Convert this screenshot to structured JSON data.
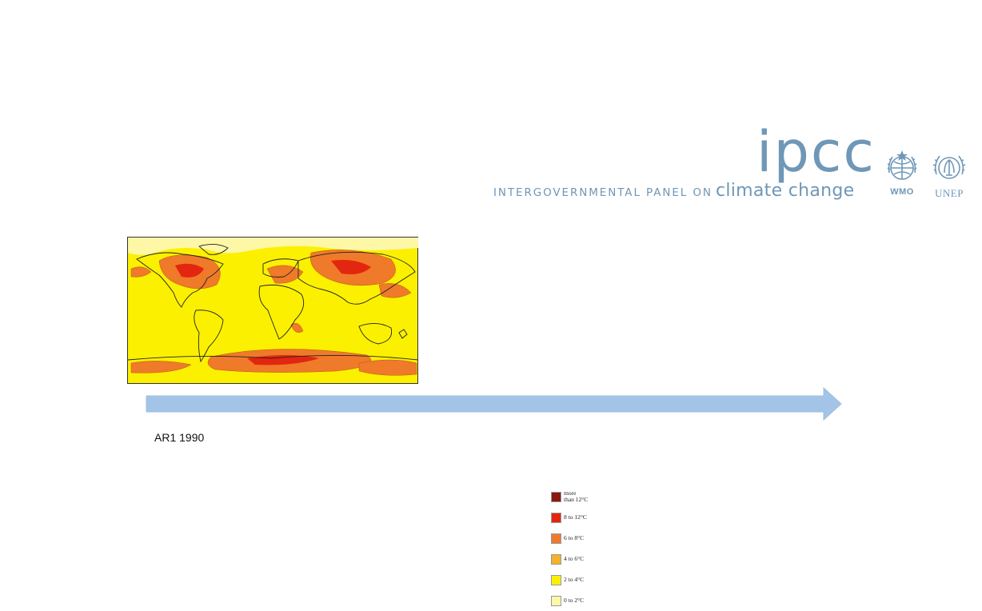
{
  "header": {
    "logo_word": "ipcc",
    "tagline_prefix": "INTERGOVERNMENTAL PANEL ON",
    "tagline_emphasis": "climate change",
    "partner_logos": [
      {
        "label": "WMO",
        "icon": "wmo-emblem-icon"
      },
      {
        "label": "UNEP",
        "icon": "unep-emblem-icon"
      }
    ],
    "brand_color": "#6f97b7"
  },
  "figure": {
    "icon": "world-temperature-map",
    "legend": [
      {
        "label": "more\nthan 12°C",
        "color": "#8a1a10"
      },
      {
        "label": "8 to 12°C",
        "color": "#e3260f"
      },
      {
        "label": "6 to 8°C",
        "color": "#ef7a2a"
      },
      {
        "label": "4 to 6°C",
        "color": "#f5b22a"
      },
      {
        "label": "2 to 4°C",
        "color": "#fbf000"
      },
      {
        "label": "0 to 2°C",
        "color": "#fdf7a6"
      }
    ]
  },
  "timeline": {
    "arrow_color": "#a3c4e6",
    "label": "AR1 1990"
  }
}
